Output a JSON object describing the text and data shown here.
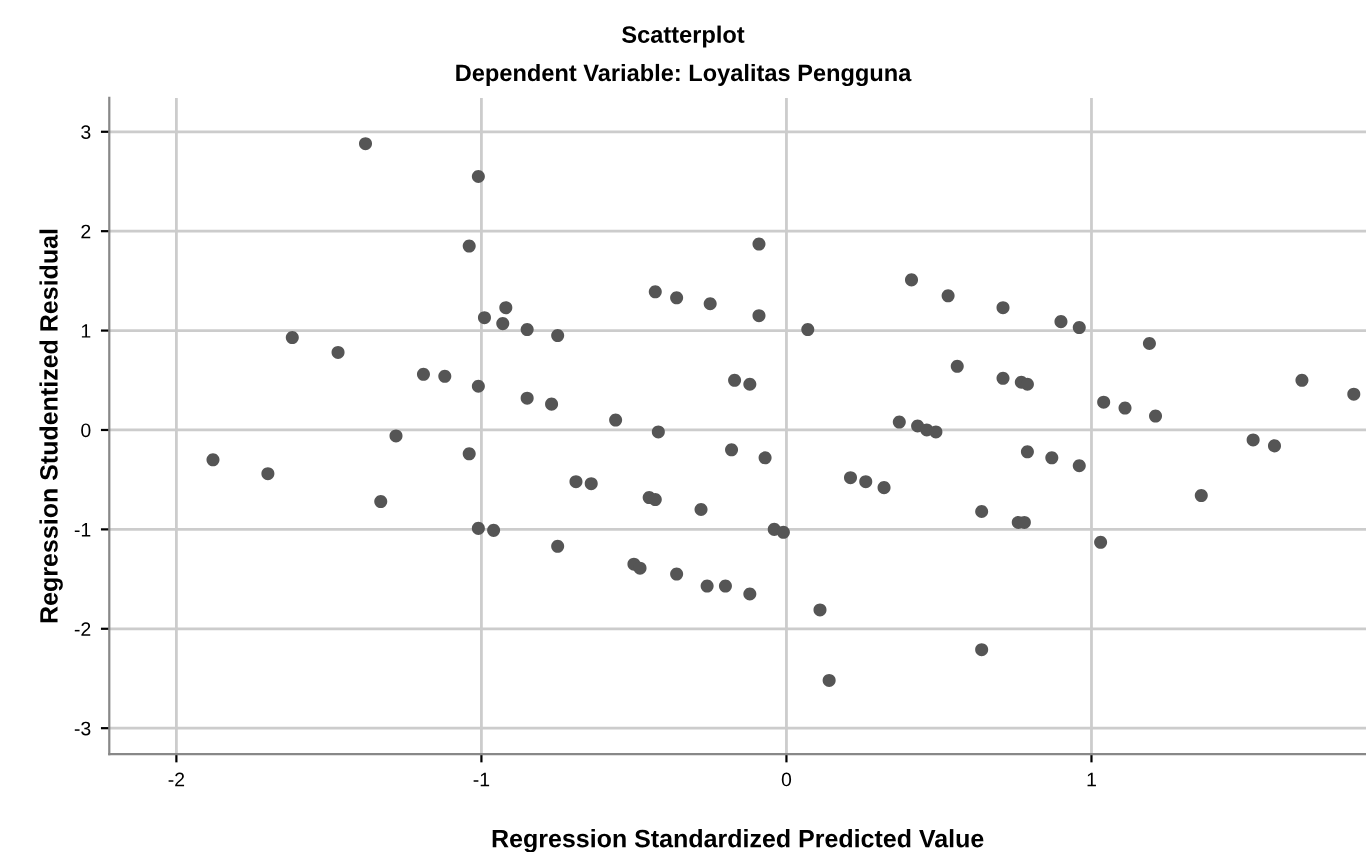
{
  "chart_data": {
    "type": "scatter",
    "title": "Scatterplot",
    "subtitle": "Dependent Variable: Loyalitas Pengguna",
    "xlabel": "Regression Standardized Predicted Value",
    "ylabel": "Regression Studentized Residual",
    "xlim": [
      -2.22,
      1.9
    ],
    "ylim": [
      -3.26,
      3.34
    ],
    "xticks": [
      -2,
      -1,
      0,
      1
    ],
    "yticks": [
      -3,
      -2,
      -1,
      0,
      1,
      2,
      3
    ],
    "grid": true,
    "marker": "circle",
    "series": [
      {
        "color": "#555555",
        "x": [
          -1.38,
          -1.01,
          -1.04,
          -0.99,
          -0.92,
          -0.93,
          -0.85,
          -1.62,
          -1.47,
          -1.19,
          -1.12,
          -1.01,
          -0.85,
          -0.77,
          -1.28,
          -1.04,
          -1.88,
          -1.7,
          -1.33,
          -1.01,
          -0.96,
          -0.75,
          -0.09,
          -0.43,
          -0.36,
          -0.25,
          -0.09,
          0.07,
          -0.75,
          -0.17,
          -0.12,
          -0.56,
          -0.42,
          -0.18,
          -0.07,
          -0.69,
          -0.64,
          -0.45,
          -0.43,
          -0.28,
          -0.04,
          -0.01,
          -0.5,
          -0.48,
          -0.36,
          -0.26,
          -0.2,
          -0.12,
          0.11,
          0.14,
          0.41,
          0.53,
          0.37,
          0.43,
          0.46,
          0.49,
          0.21,
          0.26,
          0.32,
          0.56,
          0.71,
          0.9,
          0.96,
          1.19,
          0.71,
          0.77,
          0.79,
          1.04,
          1.11,
          1.21,
          1.69,
          1.86,
          1.53,
          1.6,
          0.79,
          0.87,
          0.96,
          1.36,
          0.64,
          0.76,
          0.78,
          1.03,
          0.64
        ],
        "values": [
          2.88,
          2.55,
          1.85,
          1.13,
          1.23,
          1.07,
          1.01,
          0.93,
          0.78,
          0.56,
          0.54,
          0.44,
          0.32,
          0.26,
          -0.06,
          -0.24,
          -0.3,
          -0.44,
          -0.72,
          -0.99,
          -1.01,
          -1.17,
          1.87,
          1.39,
          1.33,
          1.27,
          1.15,
          1.01,
          0.95,
          0.5,
          0.46,
          0.1,
          -0.02,
          -0.2,
          -0.28,
          -0.52,
          -0.54,
          -0.68,
          -0.7,
          -0.8,
          -1.0,
          -1.03,
          -1.35,
          -1.39,
          -1.45,
          -1.57,
          -1.57,
          -1.65,
          -1.81,
          -2.52,
          1.51,
          1.35,
          0.08,
          0.04,
          0.0,
          -0.02,
          -0.48,
          -0.52,
          -0.58,
          0.64,
          1.23,
          1.09,
          1.03,
          0.87,
          0.52,
          0.48,
          0.46,
          0.28,
          0.22,
          0.14,
          0.5,
          0.36,
          -0.1,
          -0.16,
          -0.22,
          -0.28,
          -0.36,
          -0.66,
          -0.82,
          -0.93,
          -0.93,
          -1.13,
          -2.21
        ]
      }
    ]
  }
}
